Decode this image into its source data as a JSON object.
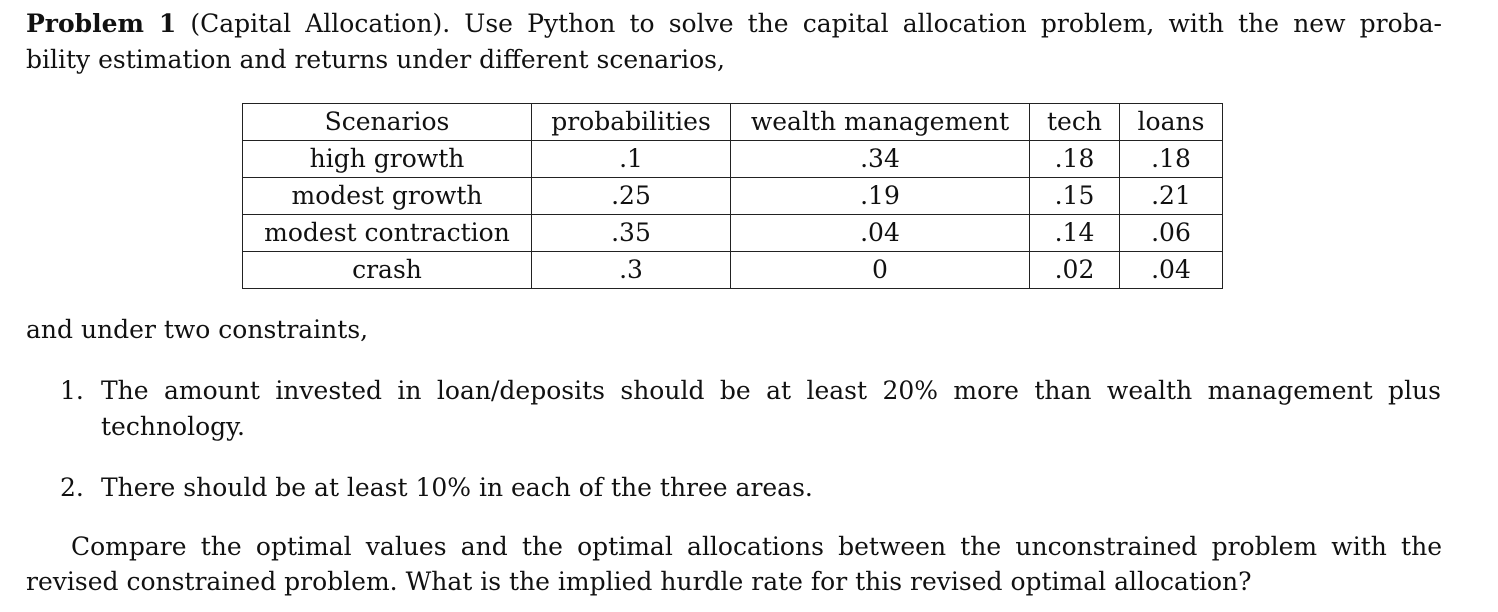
{
  "problem": {
    "label": "Problem 1",
    "intro_line1_rest": " (Capital Allocation). Use Python to solve the capital allocation problem, with the new proba-",
    "intro_line2": "bility estimation and returns under different scenarios,"
  },
  "table": {
    "headers": [
      "Scenarios",
      "probabilities",
      "wealth management",
      "tech",
      "loans"
    ],
    "rows": [
      [
        "high growth",
        ".1",
        ".34",
        ".18",
        ".18"
      ],
      [
        "modest growth",
        ".25",
        ".19",
        ".15",
        ".21"
      ],
      [
        "modest contraction",
        ".35",
        ".04",
        ".14",
        ".06"
      ],
      [
        "crash",
        ".3",
        "0",
        ".02",
        ".04"
      ]
    ]
  },
  "constraints_intro": "and under two constraints,",
  "constraints": [
    {
      "number": "1.",
      "line1": "The amount invested in loan/deposits should be at least 20% more than wealth management plus",
      "line2": "technology."
    },
    {
      "number": "2.",
      "line1": "There should be at least 10% in each of the three areas."
    }
  ],
  "closing": {
    "line1": "Compare the optimal values and the optimal allocations between the unconstrained problem with the",
    "line2": "revised constrained problem. What is the implied hurdle rate for this revised optimal allocation?"
  }
}
